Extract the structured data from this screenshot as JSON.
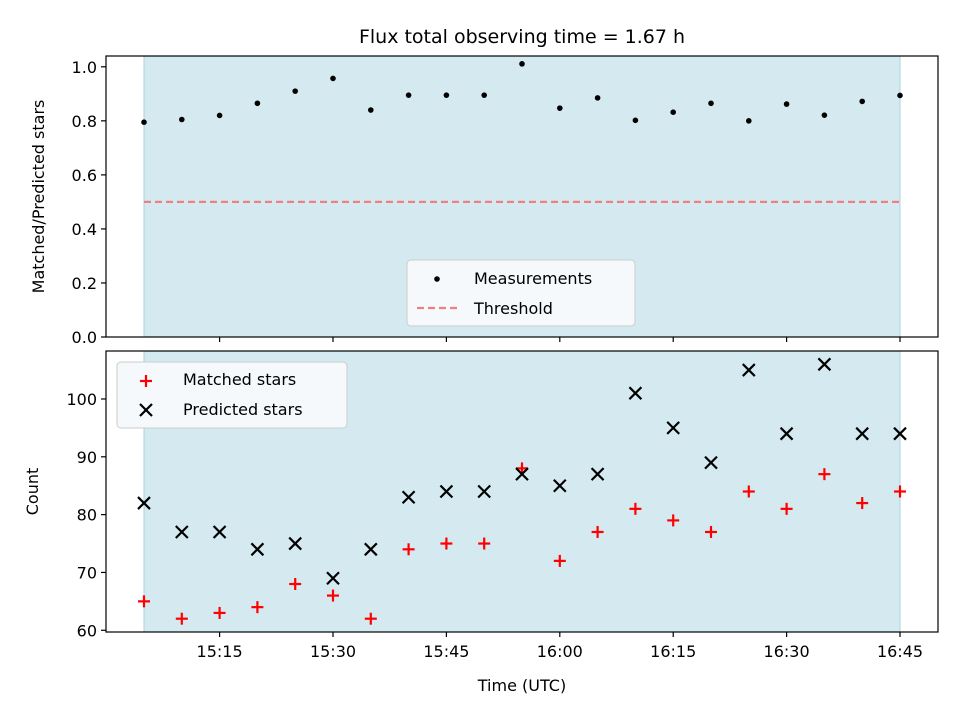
{
  "chart_data": [
    {
      "type": "scatter",
      "title": "Flux total observing time = 1.67 h",
      "xlabel": "",
      "ylabel": "Matched/Predicted stars",
      "ylim": [
        0,
        1.04
      ],
      "yticks": [
        0.0,
        0.2,
        0.4,
        0.6,
        0.8,
        1.0
      ],
      "ytick_labels": [
        "0.0",
        "0.2",
        "0.4",
        "0.6",
        "0.8",
        "1.0"
      ],
      "shaded_span": [
        "15:05",
        "16:45"
      ],
      "legend_position": "lower-center",
      "series": [
        {
          "name": "Measurements",
          "marker": "dot",
          "color": "#000000",
          "x": [
            "15:05",
            "15:10",
            "15:15",
            "15:20",
            "15:25",
            "15:30",
            "15:35",
            "15:40",
            "15:45",
            "15:50",
            "15:55",
            "16:00",
            "16:05",
            "16:10",
            "16:15",
            "16:20",
            "16:25",
            "16:30",
            "16:35",
            "16:40",
            "16:45"
          ],
          "y": [
            0.795,
            0.805,
            0.82,
            0.865,
            0.91,
            0.957,
            0.84,
            0.895,
            0.895,
            0.895,
            1.011,
            0.847,
            0.885,
            0.802,
            0.832,
            0.865,
            0.8,
            0.862,
            0.821,
            0.872,
            0.894
          ]
        },
        {
          "name": "Threshold",
          "marker": "dashed-line",
          "color": "#f08080",
          "y": 0.5
        }
      ]
    },
    {
      "type": "scatter",
      "title": "",
      "xlabel": "Time (UTC)",
      "ylabel": "Count",
      "ylim": [
        59.7,
        108.3
      ],
      "yticks": [
        60,
        70,
        80,
        90,
        100
      ],
      "ytick_labels": [
        "60",
        "70",
        "80",
        "90",
        "100"
      ],
      "xticks": [
        "15:15",
        "15:30",
        "15:45",
        "16:00",
        "16:15",
        "16:30",
        "16:45"
      ],
      "shaded_span": [
        "15:05",
        "16:45"
      ],
      "legend_position": "upper-left",
      "series": [
        {
          "name": "Matched stars",
          "marker": "plus",
          "color": "#ff0000",
          "x": [
            "15:05",
            "15:10",
            "15:15",
            "15:20",
            "15:25",
            "15:30",
            "15:35",
            "15:40",
            "15:45",
            "15:50",
            "15:55",
            "16:00",
            "16:05",
            "16:10",
            "16:15",
            "16:20",
            "16:25",
            "16:30",
            "16:35",
            "16:40",
            "16:45"
          ],
          "y": [
            65,
            62,
            63,
            64,
            68,
            66,
            62,
            74,
            75,
            75,
            88,
            72,
            77,
            81,
            79,
            77,
            84,
            81,
            87,
            82,
            84
          ]
        },
        {
          "name": "Predicted stars",
          "marker": "x",
          "color": "#000000",
          "x": [
            "15:05",
            "15:10",
            "15:15",
            "15:20",
            "15:25",
            "15:30",
            "15:35",
            "15:40",
            "15:45",
            "15:50",
            "15:55",
            "16:00",
            "16:05",
            "16:10",
            "16:15",
            "16:20",
            "16:25",
            "16:30",
            "16:35",
            "16:40",
            "16:45"
          ],
          "y": [
            82,
            77,
            77,
            74,
            75,
            69,
            74,
            83,
            84,
            84,
            87,
            85,
            87,
            101,
            95,
            89,
            105,
            94,
            106,
            94,
            94
          ]
        }
      ]
    }
  ],
  "colors": {
    "shade": "#d4eaf0",
    "shade_edge": "#a9d3e0",
    "axes": "#000000",
    "legend_bg": "#f5f9fb",
    "legend_edge": "#cccccc"
  }
}
